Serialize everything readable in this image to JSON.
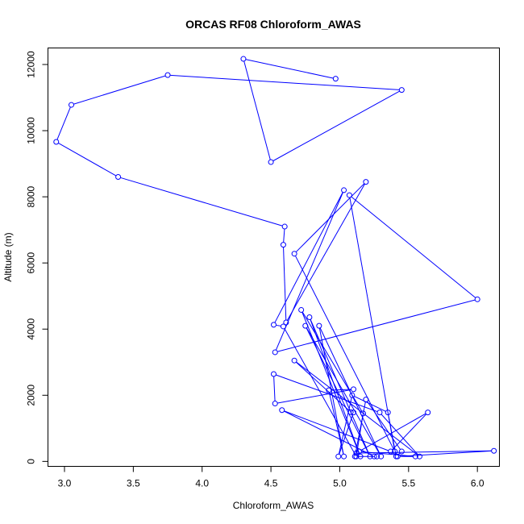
{
  "chart_data": {
    "type": "line",
    "title": "ORCAS RF08 Chloroform_AWAS",
    "xlabel": "Chloroform_AWAS",
    "ylabel": "Altitude (m)",
    "xlim": [
      2.88,
      6.16
    ],
    "ylim": [
      -150,
      12500
    ],
    "x_ticks": [
      3.0,
      3.5,
      4.0,
      4.5,
      5.0,
      5.5,
      6.0
    ],
    "x_tick_labels": [
      "3.0",
      "3.5",
      "4.0",
      "4.5",
      "5.0",
      "5.5",
      "6.0"
    ],
    "y_ticks": [
      0,
      2000,
      4000,
      6000,
      8000,
      10000,
      12000
    ],
    "y_tick_labels": [
      "0",
      "2000",
      "4000",
      "6000",
      "8000",
      "10000",
      "12000"
    ],
    "grid": false,
    "series": [
      {
        "color": "#0000ff",
        "marker": "open-circle",
        "points": [
          [
            4.97,
            11570
          ],
          [
            4.3,
            12170
          ],
          [
            4.5,
            9050
          ],
          [
            5.45,
            11230
          ],
          [
            3.75,
            11680
          ],
          [
            3.05,
            10780
          ],
          [
            2.94,
            9660
          ],
          [
            3.39,
            8600
          ],
          [
            4.6,
            7100
          ],
          [
            4.59,
            6550
          ],
          [
            4.61,
            4200
          ],
          [
            5.19,
            8450
          ],
          [
            4.67,
            6280
          ],
          [
            5.4,
            300
          ],
          [
            5.07,
            8050
          ],
          [
            6.0,
            4900
          ],
          [
            4.53,
            3300
          ],
          [
            5.03,
            8200
          ],
          [
            4.52,
            4130
          ],
          [
            4.59,
            4080
          ],
          [
            5.12,
            150
          ],
          [
            5.17,
            1450
          ],
          [
            4.72,
            4580
          ],
          [
            5.15,
            150
          ],
          [
            4.78,
            4360
          ],
          [
            5.22,
            150
          ],
          [
            4.75,
            4100
          ],
          [
            5.3,
            150
          ],
          [
            4.85,
            4100
          ],
          [
            5.03,
            150
          ],
          [
            4.92,
            2150
          ],
          [
            5.1,
            2180
          ],
          [
            4.53,
            1750
          ],
          [
            4.52,
            2640
          ],
          [
            5.29,
            1480
          ],
          [
            5.58,
            150
          ],
          [
            4.67,
            3050
          ],
          [
            5.08,
            1490
          ],
          [
            5.1,
            1480
          ],
          [
            4.99,
            150
          ],
          [
            5.09,
            2000
          ],
          [
            5.35,
            1480
          ],
          [
            5.41,
            150
          ],
          [
            5.45,
            300
          ],
          [
            5.19,
            1870
          ],
          [
            5.11,
            150
          ],
          [
            5.27,
            150
          ],
          [
            5.25,
            150
          ],
          [
            4.58,
            1550
          ],
          [
            5.37,
            300
          ],
          [
            5.64,
            1480
          ],
          [
            5.14,
            300
          ],
          [
            5.55,
            150
          ],
          [
            5.42,
            150
          ],
          [
            6.12,
            320
          ],
          [
            5.12,
            250
          ]
        ]
      }
    ]
  }
}
